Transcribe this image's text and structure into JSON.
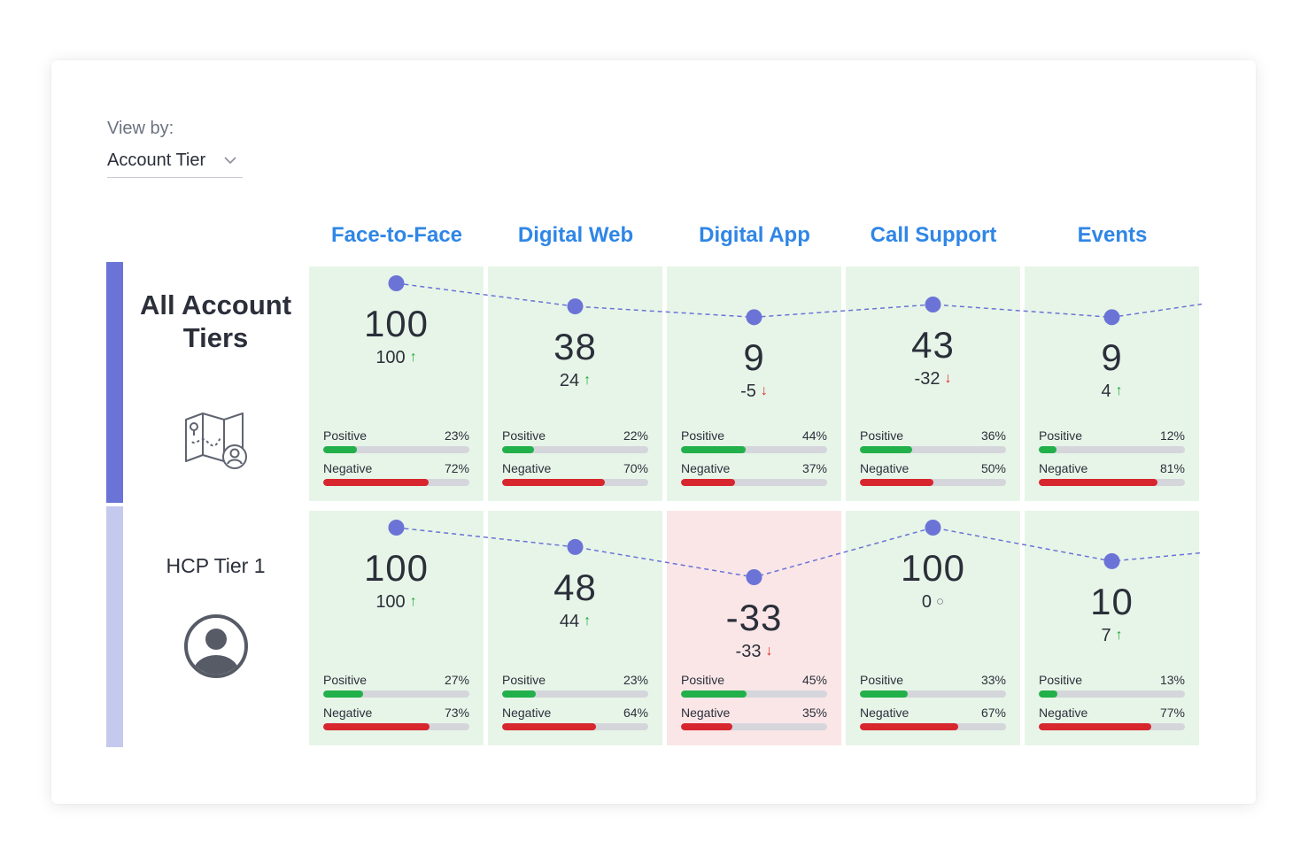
{
  "view_by": {
    "label": "View by:",
    "value": "Account Tier"
  },
  "columns": [
    "Face-to-Face",
    "Digital Web",
    "Digital App",
    "Call Support",
    "Events"
  ],
  "colors": {
    "accent": "#2f86e6",
    "positive": "#22b04a",
    "negative": "#d7262e",
    "trend": "#6b74d6",
    "cell_good": "#e7f5e8",
    "cell_bad": "#fae6e7",
    "row_bar_0": "#6b74d6",
    "row_bar_1": "#c5c9ee"
  },
  "rows": [
    {
      "title": "All Account Tiers",
      "icon": "map-person-icon",
      "cells": [
        {
          "score": "100",
          "delta": "100",
          "trend": "up",
          "positive_label": "Positive",
          "positive": "23%",
          "negative_label": "Negative",
          "negative": "72%",
          "status": "good"
        },
        {
          "score": "38",
          "delta": "24",
          "trend": "up",
          "positive_label": "Positive",
          "positive": "22%",
          "negative_label": "Negative",
          "negative": "70%",
          "status": "good"
        },
        {
          "score": "9",
          "delta": "-5",
          "trend": "down",
          "positive_label": "Positive",
          "positive": "44%",
          "negative_label": "Negative",
          "negative": "37%",
          "status": "good"
        },
        {
          "score": "43",
          "delta": "-32",
          "trend": "down",
          "positive_label": "Positive",
          "positive": "36%",
          "negative_label": "Negative",
          "negative": "50%",
          "status": "good"
        },
        {
          "score": "9",
          "delta": "4",
          "trend": "up",
          "positive_label": "Positive",
          "positive": "12%",
          "negative_label": "Negative",
          "negative": "81%",
          "status": "good"
        }
      ]
    },
    {
      "title": "HCP Tier 1",
      "icon": "user-avatar-icon",
      "cells": [
        {
          "score": "100",
          "delta": "100",
          "trend": "up",
          "positive_label": "Positive",
          "positive": "27%",
          "negative_label": "Negative",
          "negative": "73%",
          "status": "good"
        },
        {
          "score": "48",
          "delta": "44",
          "trend": "up",
          "positive_label": "Positive",
          "positive": "23%",
          "negative_label": "Negative",
          "negative": "64%",
          "status": "good"
        },
        {
          "score": "-33",
          "delta": "-33",
          "trend": "down",
          "positive_label": "Positive",
          "positive": "45%",
          "negative_label": "Negative",
          "negative": "35%",
          "status": "bad"
        },
        {
          "score": "100",
          "delta": "0",
          "trend": "none",
          "positive_label": "Positive",
          "positive": "33%",
          "negative_label": "Negative",
          "negative": "67%",
          "status": "good"
        },
        {
          "score": "10",
          "delta": "7",
          "trend": "up",
          "positive_label": "Positive",
          "positive": "13%",
          "negative_label": "Negative",
          "negative": "77%",
          "status": "good"
        }
      ]
    }
  ]
}
